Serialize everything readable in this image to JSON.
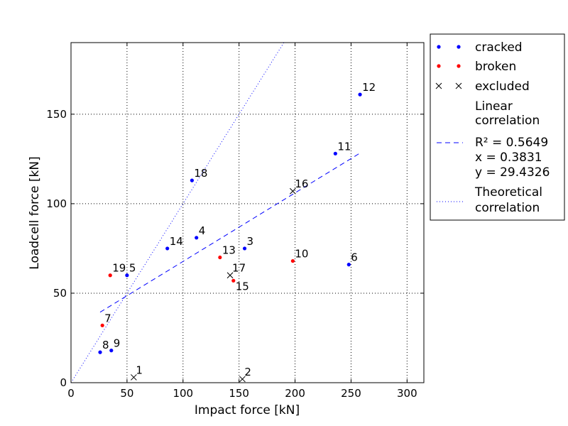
{
  "chart_data": {
    "type": "scatter",
    "xlabel": "Impact force [kN]",
    "ylabel": "Loadcell force [kN]",
    "xlim": [
      0,
      315
    ],
    "ylim": [
      0,
      190
    ],
    "x_ticks": [
      0,
      50,
      100,
      150,
      200,
      250,
      300
    ],
    "y_ticks": [
      0,
      50,
      100,
      150
    ],
    "grid": true,
    "grid_style": "dotted",
    "legend_placement": "outside-right",
    "series": [
      {
        "name": "cracked",
        "marker": "dot",
        "color": "#0000ff",
        "points": [
          {
            "label": "3",
            "x": 155,
            "y": 75
          },
          {
            "label": "4",
            "x": 112,
            "y": 81
          },
          {
            "label": "5",
            "x": 50,
            "y": 60
          },
          {
            "label": "6",
            "x": 248,
            "y": 66
          },
          {
            "label": "8",
            "x": 26,
            "y": 17
          },
          {
            "label": "9",
            "x": 36,
            "y": 18
          },
          {
            "label": "11",
            "x": 236,
            "y": 128
          },
          {
            "label": "12",
            "x": 258,
            "y": 161
          },
          {
            "label": "14",
            "x": 86,
            "y": 75
          },
          {
            "label": "18",
            "x": 108,
            "y": 113
          }
        ]
      },
      {
        "name": "broken",
        "marker": "dot",
        "color": "#ff0000",
        "points": [
          {
            "label": "7",
            "x": 28,
            "y": 32
          },
          {
            "label": "10",
            "x": 198,
            "y": 68
          },
          {
            "label": "13",
            "x": 133,
            "y": 70
          },
          {
            "label": "15",
            "x": 145,
            "y": 57
          },
          {
            "label": "19",
            "x": 35,
            "y": 60
          }
        ]
      },
      {
        "name": "excluded",
        "marker": "x",
        "color": "#000000",
        "points": [
          {
            "label": "1",
            "x": 56,
            "y": 3
          },
          {
            "label": "2",
            "x": 153,
            "y": 2
          },
          {
            "label": "16",
            "x": 198,
            "y": 107
          },
          {
            "label": "17",
            "x": 142,
            "y": 60
          }
        ]
      }
    ],
    "lines": [
      {
        "name_lines": [
          "Linear",
          "correlation"
        ],
        "stat_lines": [
          "R² = 0.5649",
          " x = 0.3831",
          " y = 29.4326"
        ],
        "style": "dashed",
        "color": "#0000ff",
        "slope": 0.3831,
        "intercept": 29.4326,
        "x_range": [
          26,
          258
        ]
      },
      {
        "name_lines": [
          "Theoretical",
          "correlation"
        ],
        "style": "dotted",
        "color": "#0000ff",
        "slope": 1,
        "intercept": 0,
        "x_range": [
          0,
          190
        ]
      }
    ]
  }
}
